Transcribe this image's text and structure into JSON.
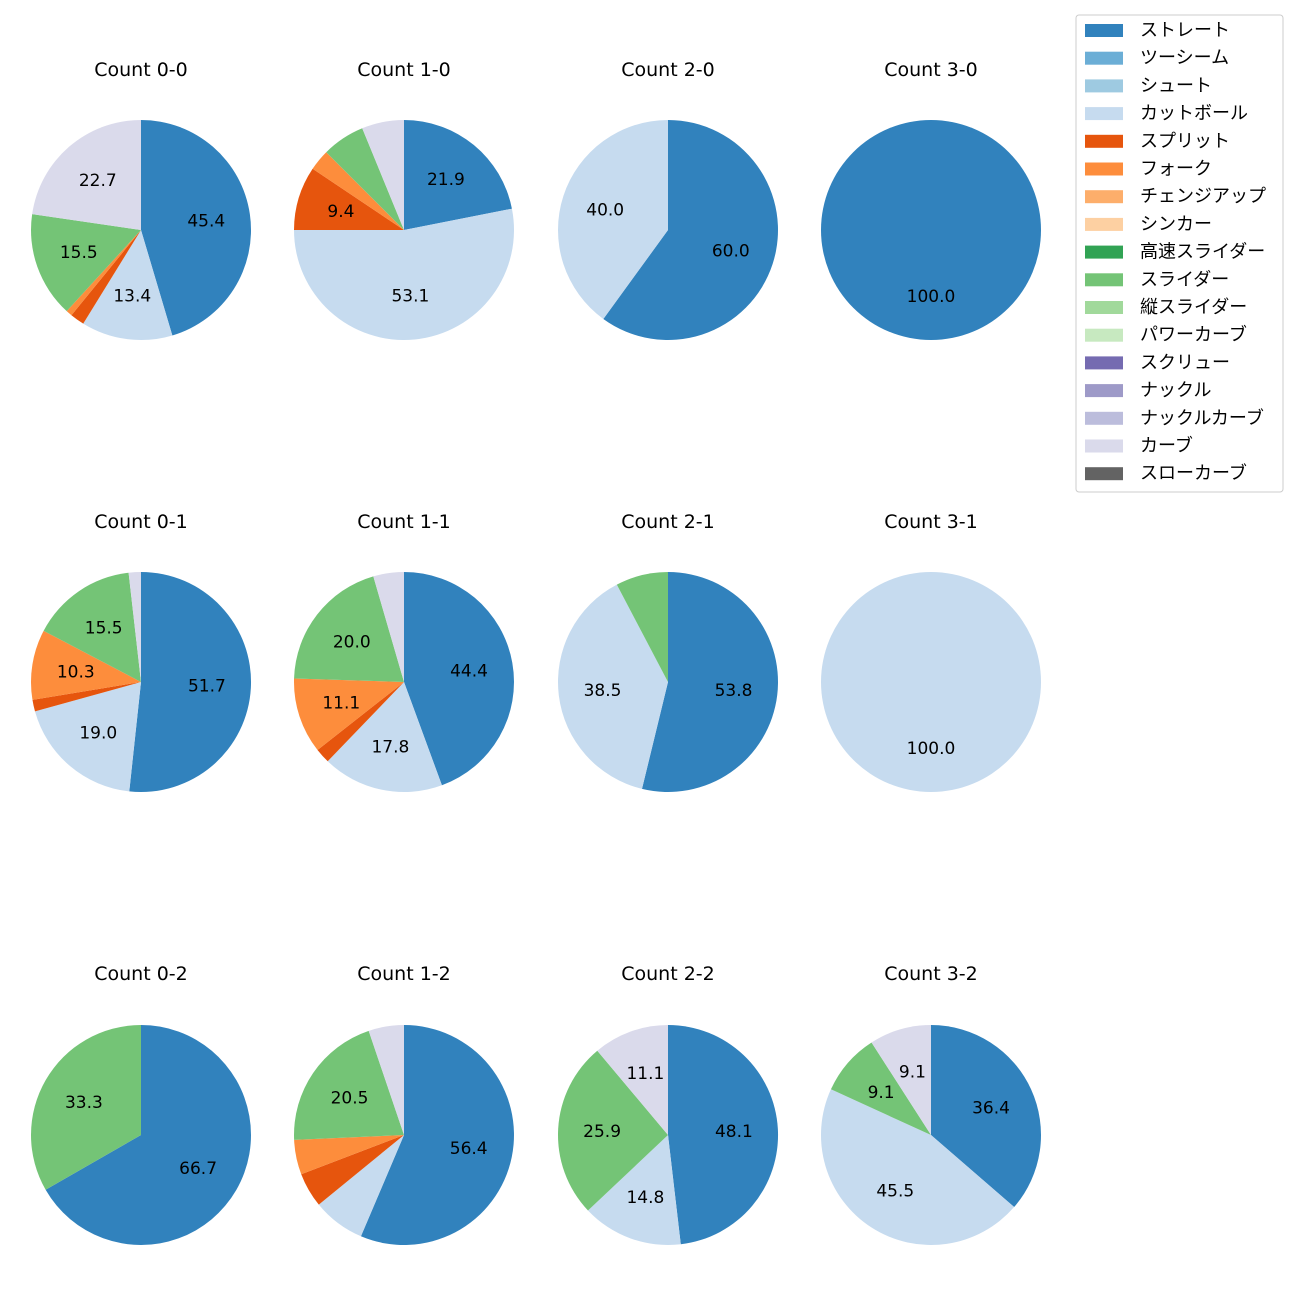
{
  "chart_data": {
    "type": "pie",
    "legend_position": "top-right",
    "legend": [
      {
        "name": "ストレート",
        "color": "#3182bd"
      },
      {
        "name": "ツーシーム",
        "color": "#6baed6"
      },
      {
        "name": "シュート",
        "color": "#9ecae1"
      },
      {
        "name": "カットボール",
        "color": "#c6dbef"
      },
      {
        "name": "スプリット",
        "color": "#e6550d"
      },
      {
        "name": "フォーク",
        "color": "#fd8d3c"
      },
      {
        "name": "チェンジアップ",
        "color": "#fdae6b"
      },
      {
        "name": "シンカー",
        "color": "#fdd0a2"
      },
      {
        "name": "高速スライダー",
        "color": "#31a354"
      },
      {
        "name": "スライダー",
        "color": "#74c476"
      },
      {
        "name": "縦スライダー",
        "color": "#a1d99b"
      },
      {
        "name": "パワーカーブ",
        "color": "#c7e9c0"
      },
      {
        "name": "スクリュー",
        "color": "#756bb1"
      },
      {
        "name": "ナックル",
        "color": "#9e9ac8"
      },
      {
        "name": "ナックルカーブ",
        "color": "#bcbddc"
      },
      {
        "name": "カーブ",
        "color": "#dadaeb"
      },
      {
        "name": "スローカーブ",
        "color": "#636363"
      }
    ],
    "pies": [
      {
        "title": "Count 0-0",
        "slices": [
          {
            "pitch": "ストレート",
            "value": 45.4,
            "label": "45.4"
          },
          {
            "pitch": "カットボール",
            "value": 13.4,
            "label": "13.4"
          },
          {
            "pitch": "スプリット",
            "value": 2.1,
            "label": ""
          },
          {
            "pitch": "フォーク",
            "value": 0.9,
            "label": ""
          },
          {
            "pitch": "スライダー",
            "value": 15.5,
            "label": "15.5"
          },
          {
            "pitch": "カーブ",
            "value": 22.7,
            "label": "22.7"
          }
        ]
      },
      {
        "title": "Count 1-0",
        "slices": [
          {
            "pitch": "ストレート",
            "value": 21.9,
            "label": "21.9"
          },
          {
            "pitch": "カットボール",
            "value": 53.1,
            "label": "53.1"
          },
          {
            "pitch": "スプリット",
            "value": 9.4,
            "label": "9.4"
          },
          {
            "pitch": "フォーク",
            "value": 3.1,
            "label": ""
          },
          {
            "pitch": "スライダー",
            "value": 6.3,
            "label": ""
          },
          {
            "pitch": "カーブ",
            "value": 6.2,
            "label": ""
          }
        ]
      },
      {
        "title": "Count 2-0",
        "slices": [
          {
            "pitch": "ストレート",
            "value": 60.0,
            "label": "60.0"
          },
          {
            "pitch": "カットボール",
            "value": 40.0,
            "label": "40.0"
          }
        ]
      },
      {
        "title": "Count 3-0",
        "slices": [
          {
            "pitch": "ストレート",
            "value": 100.0,
            "label": "100.0"
          }
        ]
      },
      {
        "title": "Count 0-1",
        "slices": [
          {
            "pitch": "ストレート",
            "value": 51.7,
            "label": "51.7"
          },
          {
            "pitch": "カットボール",
            "value": 19.0,
            "label": "19.0"
          },
          {
            "pitch": "スプリット",
            "value": 1.7,
            "label": ""
          },
          {
            "pitch": "フォーク",
            "value": 10.3,
            "label": "10.3"
          },
          {
            "pitch": "スライダー",
            "value": 15.5,
            "label": "15.5"
          },
          {
            "pitch": "カーブ",
            "value": 1.8,
            "label": ""
          }
        ]
      },
      {
        "title": "Count 1-1",
        "slices": [
          {
            "pitch": "ストレート",
            "value": 44.4,
            "label": "44.4"
          },
          {
            "pitch": "カットボール",
            "value": 17.8,
            "label": "17.8"
          },
          {
            "pitch": "スプリット",
            "value": 2.2,
            "label": ""
          },
          {
            "pitch": "フォーク",
            "value": 11.1,
            "label": "11.1"
          },
          {
            "pitch": "スライダー",
            "value": 20.0,
            "label": "20.0"
          },
          {
            "pitch": "カーブ",
            "value": 4.5,
            "label": ""
          }
        ]
      },
      {
        "title": "Count 2-1",
        "slices": [
          {
            "pitch": "ストレート",
            "value": 53.8,
            "label": "53.8"
          },
          {
            "pitch": "カットボール",
            "value": 38.5,
            "label": "38.5"
          },
          {
            "pitch": "スライダー",
            "value": 7.7,
            "label": ""
          }
        ]
      },
      {
        "title": "Count 3-1",
        "slices": [
          {
            "pitch": "カットボール",
            "value": 100.0,
            "label": "100.0"
          }
        ]
      },
      {
        "title": "Count 0-2",
        "slices": [
          {
            "pitch": "ストレート",
            "value": 66.7,
            "label": "66.7"
          },
          {
            "pitch": "スライダー",
            "value": 33.3,
            "label": "33.3"
          }
        ]
      },
      {
        "title": "Count 1-2",
        "slices": [
          {
            "pitch": "ストレート",
            "value": 56.4,
            "label": "56.4"
          },
          {
            "pitch": "カットボール",
            "value": 7.7,
            "label": ""
          },
          {
            "pitch": "スプリット",
            "value": 5.1,
            "label": ""
          },
          {
            "pitch": "フォーク",
            "value": 5.1,
            "label": ""
          },
          {
            "pitch": "スライダー",
            "value": 20.5,
            "label": "20.5"
          },
          {
            "pitch": "カーブ",
            "value": 5.2,
            "label": ""
          }
        ]
      },
      {
        "title": "Count 2-2",
        "slices": [
          {
            "pitch": "ストレート",
            "value": 48.1,
            "label": "48.1"
          },
          {
            "pitch": "カットボール",
            "value": 14.8,
            "label": "14.8"
          },
          {
            "pitch": "スライダー",
            "value": 25.9,
            "label": "25.9"
          },
          {
            "pitch": "カーブ",
            "value": 11.1,
            "label": "11.1"
          }
        ]
      },
      {
        "title": "Count 3-2",
        "slices": [
          {
            "pitch": "ストレート",
            "value": 36.4,
            "label": "36.4"
          },
          {
            "pitch": "カットボール",
            "value": 45.5,
            "label": "45.5"
          },
          {
            "pitch": "スライダー",
            "value": 9.1,
            "label": "9.1"
          },
          {
            "pitch": "カーブ",
            "value": 9.1,
            "label": "9.1"
          }
        ]
      }
    ]
  }
}
